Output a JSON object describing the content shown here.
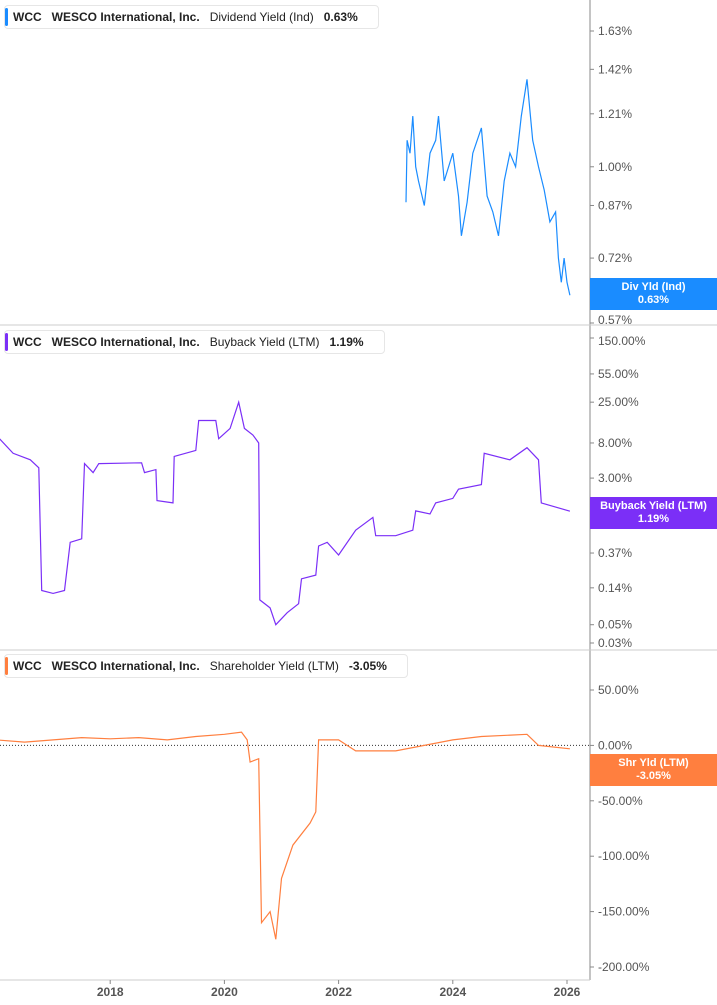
{
  "chart_data": [
    {
      "type": "line",
      "ticker": "WCC",
      "company": "WESCO International, Inc.",
      "metric": "Dividend Yield (Ind)",
      "current": "0.63%",
      "badge_label": "Div Yld (Ind)",
      "color": "#1a8cff",
      "scale": "log",
      "ylim": [
        0.57,
        1.9
      ],
      "yticks": [
        "1.63%",
        "1.42%",
        "1.21%",
        "1.00%",
        "0.87%",
        "0.72%",
        "0.57%"
      ],
      "ytick_values": [
        1.63,
        1.42,
        1.21,
        1.0,
        0.87,
        0.72,
        0.57
      ],
      "points": [
        [
          2023.18,
          0.88
        ],
        [
          2023.2,
          1.1
        ],
        [
          2023.25,
          1.05
        ],
        [
          2023.3,
          1.2
        ],
        [
          2023.35,
          1.0
        ],
        [
          2023.4,
          0.95
        ],
        [
          2023.5,
          0.87
        ],
        [
          2023.6,
          1.05
        ],
        [
          2023.7,
          1.1
        ],
        [
          2023.75,
          1.2
        ],
        [
          2023.85,
          0.95
        ],
        [
          2024.0,
          1.05
        ],
        [
          2024.1,
          0.9
        ],
        [
          2024.15,
          0.78
        ],
        [
          2024.25,
          0.88
        ],
        [
          2024.35,
          1.05
        ],
        [
          2024.5,
          1.15
        ],
        [
          2024.6,
          0.9
        ],
        [
          2024.7,
          0.85
        ],
        [
          2024.8,
          0.78
        ],
        [
          2024.9,
          0.95
        ],
        [
          2025.0,
          1.05
        ],
        [
          2025.1,
          1.0
        ],
        [
          2025.2,
          1.2
        ],
        [
          2025.3,
          1.37
        ],
        [
          2025.4,
          1.1
        ],
        [
          2025.5,
          1.0
        ],
        [
          2025.6,
          0.92
        ],
        [
          2025.7,
          0.82
        ],
        [
          2025.8,
          0.85
        ],
        [
          2025.85,
          0.72
        ],
        [
          2025.9,
          0.66
        ],
        [
          2025.95,
          0.72
        ],
        [
          2026.0,
          0.66
        ],
        [
          2026.05,
          0.63
        ]
      ]
    },
    {
      "type": "line",
      "ticker": "WCC",
      "company": "WESCO International, Inc.",
      "metric": "Buyback Yield (LTM)",
      "current": "1.19%",
      "badge_label": "Buyback Yield (LTM)",
      "color": "#7b2ff7",
      "scale": "log",
      "ylim": [
        0.025,
        200
      ],
      "yticks": [
        "150.00%",
        "55.00%",
        "25.00%",
        "8.00%",
        "3.00%",
        "0.37%",
        "0.14%",
        "0.05%",
        "0.03%"
      ],
      "ytick_values": [
        150,
        55,
        25,
        8,
        3,
        0.37,
        0.14,
        0.05,
        0.03
      ],
      "points": [
        [
          2016.0,
          10
        ],
        [
          2016.3,
          6
        ],
        [
          2016.6,
          5
        ],
        [
          2016.75,
          4
        ],
        [
          2016.8,
          0.13
        ],
        [
          2017.0,
          0.12
        ],
        [
          2017.2,
          0.13
        ],
        [
          2017.3,
          0.5
        ],
        [
          2017.5,
          0.55
        ],
        [
          2017.55,
          4.5
        ],
        [
          2017.7,
          3.5
        ],
        [
          2017.8,
          4.5
        ],
        [
          2018.55,
          4.6
        ],
        [
          2018.6,
          3.5
        ],
        [
          2018.8,
          3.8
        ],
        [
          2018.82,
          1.6
        ],
        [
          2019.1,
          1.5
        ],
        [
          2019.12,
          5.5
        ],
        [
          2019.5,
          6.5
        ],
        [
          2019.55,
          15
        ],
        [
          2019.85,
          15
        ],
        [
          2019.9,
          9
        ],
        [
          2020.1,
          12
        ],
        [
          2020.25,
          25
        ],
        [
          2020.35,
          12
        ],
        [
          2020.5,
          10
        ],
        [
          2020.6,
          8
        ],
        [
          2020.62,
          0.1
        ],
        [
          2020.8,
          0.08
        ],
        [
          2020.9,
          0.05
        ],
        [
          2021.1,
          0.07
        ],
        [
          2021.3,
          0.09
        ],
        [
          2021.35,
          0.18
        ],
        [
          2021.6,
          0.2
        ],
        [
          2021.65,
          0.45
        ],
        [
          2021.8,
          0.5
        ],
        [
          2022.0,
          0.35
        ],
        [
          2022.3,
          0.7
        ],
        [
          2022.6,
          1.0
        ],
        [
          2022.65,
          0.6
        ],
        [
          2023.0,
          0.6
        ],
        [
          2023.3,
          0.7
        ],
        [
          2023.35,
          1.2
        ],
        [
          2023.6,
          1.1
        ],
        [
          2023.7,
          1.5
        ],
        [
          2024.0,
          1.7
        ],
        [
          2024.1,
          2.2
        ],
        [
          2024.5,
          2.5
        ],
        [
          2024.55,
          6
        ],
        [
          2025.0,
          5
        ],
        [
          2025.3,
          7
        ],
        [
          2025.5,
          5
        ],
        [
          2025.55,
          1.5
        ],
        [
          2026.05,
          1.19
        ]
      ]
    },
    {
      "type": "line",
      "ticker": "WCC",
      "company": "WESCO International, Inc.",
      "metric": "Shareholder Yield (LTM)",
      "current": "-3.05%",
      "badge_label": "Shr Yld (LTM)",
      "color": "#ff7f3f",
      "scale": "linear",
      "ylim": [
        -200,
        50
      ],
      "yticks": [
        "50.00%",
        "0.00%",
        "-50.00%",
        "-100.00%",
        "-150.00%",
        "-200.00%"
      ],
      "ytick_values": [
        50,
        0,
        -50,
        -100,
        -150,
        -200
      ],
      "points": [
        [
          2016.0,
          5
        ],
        [
          2016.5,
          3
        ],
        [
          2017.0,
          5
        ],
        [
          2017.5,
          7
        ],
        [
          2018.0,
          6
        ],
        [
          2018.5,
          7
        ],
        [
          2019.0,
          5
        ],
        [
          2019.5,
          8
        ],
        [
          2020.0,
          10
        ],
        [
          2020.3,
          12
        ],
        [
          2020.4,
          5
        ],
        [
          2020.45,
          -15
        ],
        [
          2020.6,
          -12
        ],
        [
          2020.65,
          -160
        ],
        [
          2020.8,
          -150
        ],
        [
          2020.9,
          -175
        ],
        [
          2021.0,
          -120
        ],
        [
          2021.2,
          -90
        ],
        [
          2021.5,
          -70
        ],
        [
          2021.6,
          -60
        ],
        [
          2021.65,
          5
        ],
        [
          2022.0,
          5
        ],
        [
          2022.3,
          -5
        ],
        [
          2023.0,
          -5
        ],
        [
          2023.5,
          0
        ],
        [
          2024.0,
          5
        ],
        [
          2024.5,
          8
        ],
        [
          2025.3,
          10
        ],
        [
          2025.5,
          0
        ],
        [
          2026.05,
          -3.05
        ]
      ]
    }
  ],
  "x_axis": {
    "ticks": [
      "2018",
      "2020",
      "2022",
      "2024",
      "2026"
    ],
    "tick_values": [
      2018,
      2020,
      2022,
      2024,
      2026
    ]
  }
}
